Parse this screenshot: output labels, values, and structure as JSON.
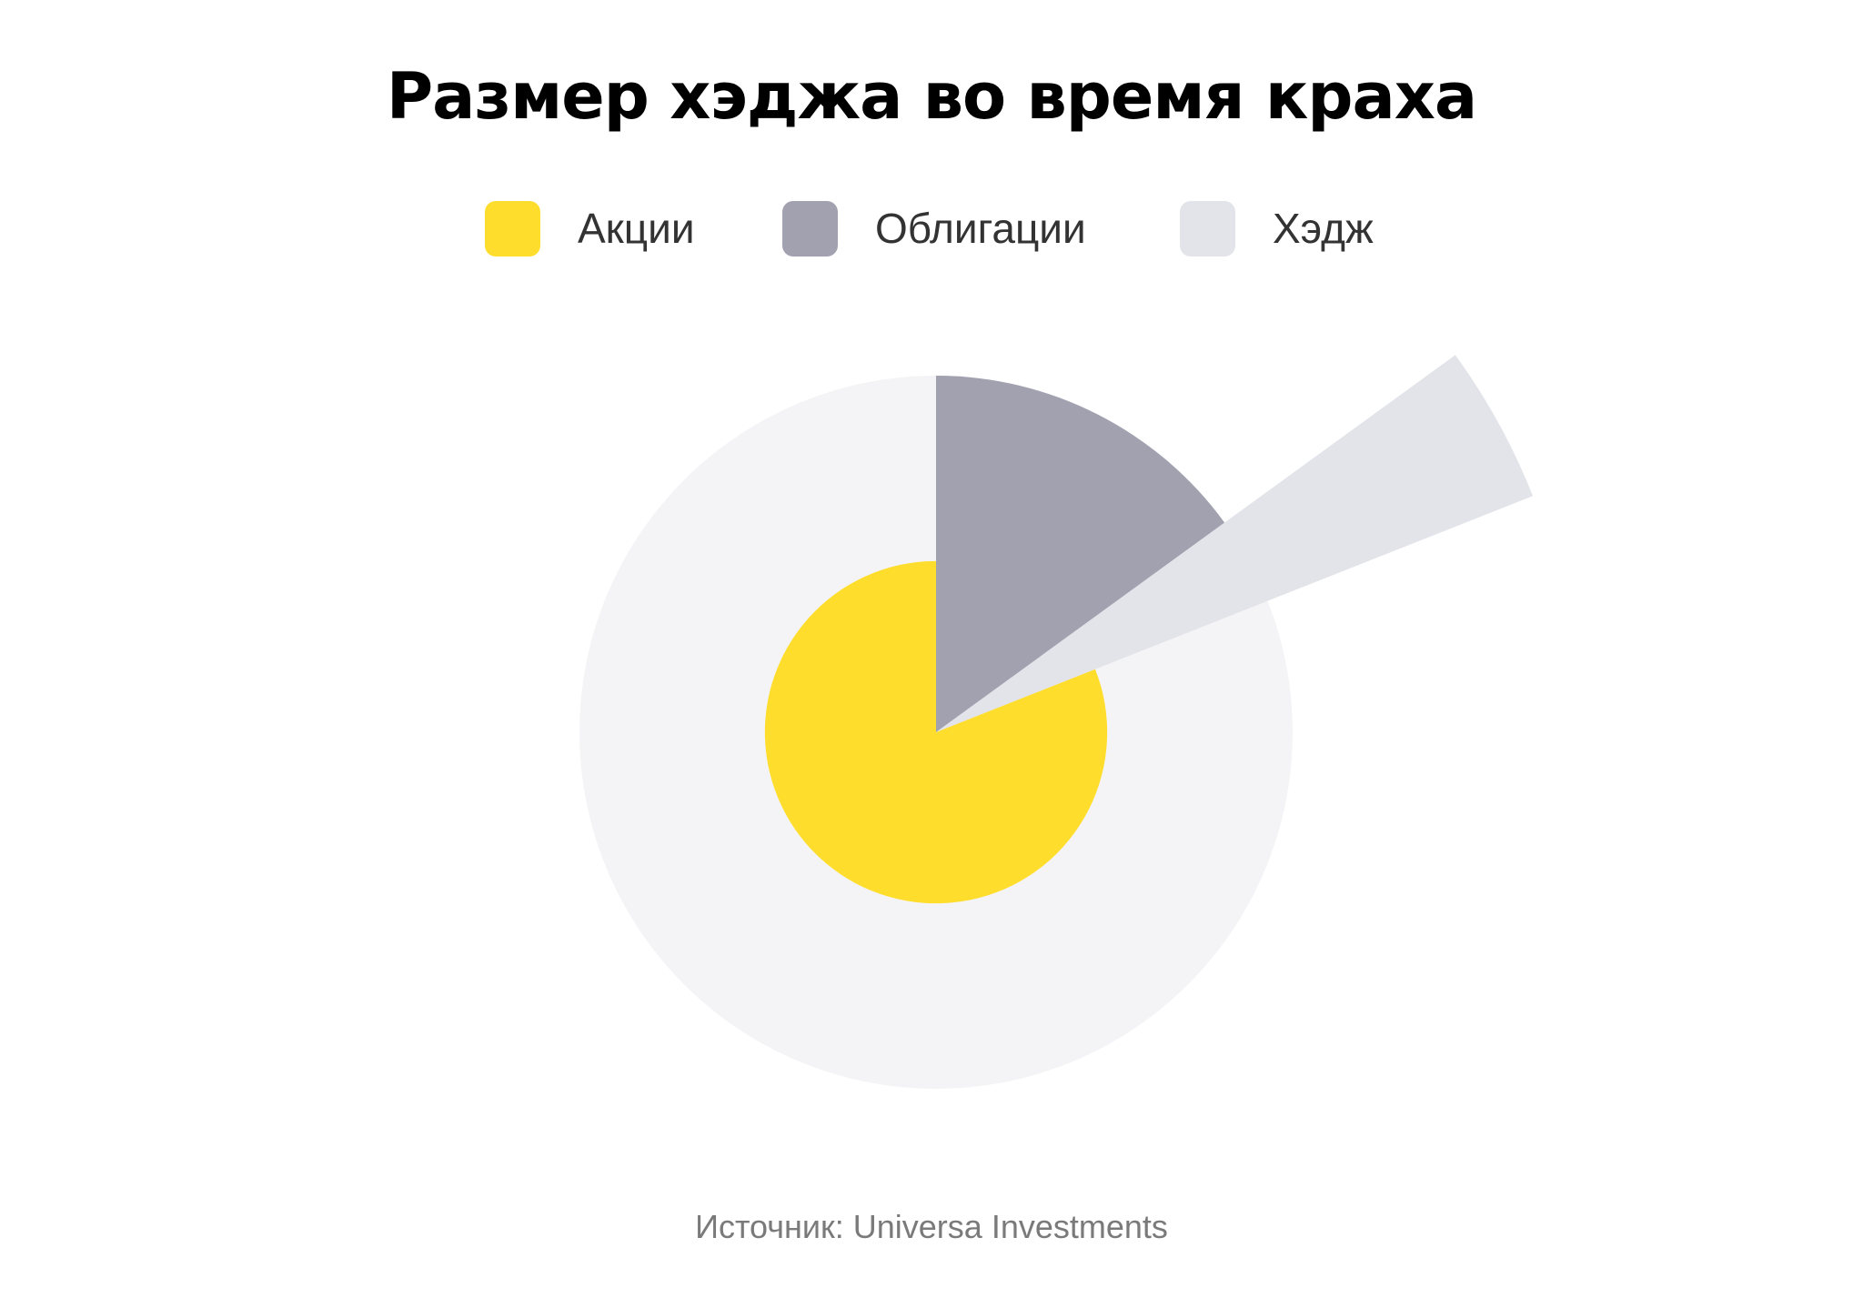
{
  "title": "Размер хэджа во время краха",
  "source": "Источник: Universa Investments",
  "colors": {
    "background": "#ffffff",
    "equities": "#FFDD2D",
    "bonds": "#A2A1B0",
    "hedge": "#E3E4E9",
    "outer_disc": "#F4F4F6"
  },
  "legend": [
    {
      "label": "Акции",
      "color": "#FFDD2D"
    },
    {
      "label": "Облигации",
      "color": "#A2A1B0"
    },
    {
      "label": "Хэдж",
      "color": "#E3E4E9"
    }
  ],
  "chart_data": {
    "type": "pie",
    "variant": "polar-area",
    "title": "Размер хэджа во время краха",
    "legend_position": "top-center",
    "series": [
      {
        "name": "Акции",
        "angle_share": 0.81,
        "relative_radius": 0.48
      },
      {
        "name": "Облигации",
        "angle_share": 0.15,
        "relative_radius": 1.0
      },
      {
        "name": "Хэдж",
        "angle_share": 0.04,
        "relative_radius": 1.8
      }
    ],
    "grid": false
  }
}
